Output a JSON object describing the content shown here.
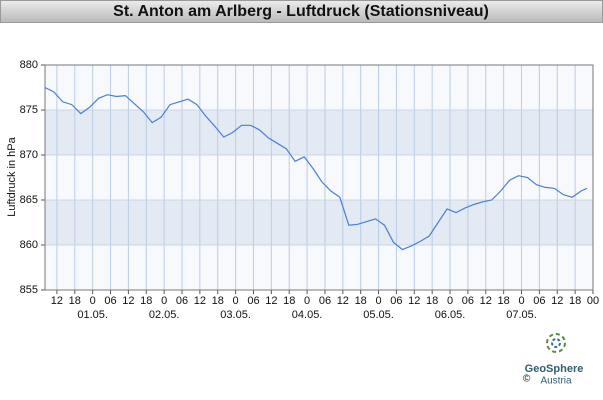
{
  "chart_data": {
    "type": "line",
    "title": "St. Anton am Arlberg - Luftdruck (Stationsniveau)",
    "y_label": "Luftdruck in hPa",
    "x": [
      0,
      3,
      6,
      9,
      12,
      15,
      18,
      21,
      24,
      27,
      30,
      33,
      36,
      39,
      42,
      45,
      48,
      51,
      54,
      57,
      60,
      63,
      66,
      69,
      72,
      75,
      78,
      81,
      84,
      87,
      90,
      93,
      96,
      99,
      102,
      105,
      108,
      111,
      114,
      117,
      120,
      123,
      126,
      129,
      132,
      135,
      138,
      141,
      144,
      147,
      150,
      153,
      156,
      159,
      162,
      165,
      168,
      171,
      174,
      177,
      180,
      182
    ],
    "values": [
      877.5,
      877.0,
      875.9,
      875.6,
      874.6,
      875.3,
      876.3,
      876.7,
      876.5,
      876.6,
      875.7,
      874.8,
      873.6,
      874.2,
      875.6,
      875.9,
      876.2,
      875.6,
      874.3,
      873.2,
      872.0,
      872.5,
      873.3,
      873.3,
      872.8,
      871.9,
      871.3,
      870.7,
      869.3,
      869.8,
      868.5,
      867.0,
      866.0,
      865.3,
      862.2,
      862.3,
      862.6,
      862.9,
      862.2,
      860.3,
      859.5,
      859.9,
      860.4,
      861.0,
      862.5,
      864.0,
      863.6,
      864.1,
      864.5,
      864.8,
      865.0,
      866.0,
      867.2,
      867.7,
      867.5,
      866.7,
      866.4,
      866.3,
      865.6,
      865.3,
      866.0,
      866.3
    ],
    "color": "#4a7fd6",
    "xlim": [
      0,
      184
    ],
    "xticks": [
      {
        "value": 4,
        "label": "12"
      },
      {
        "value": 10,
        "label": "18"
      },
      {
        "value": 16,
        "label": "0"
      },
      {
        "value": 22,
        "label": "06"
      },
      {
        "value": 28,
        "label": "12"
      },
      {
        "value": 34,
        "label": "18"
      },
      {
        "value": 40,
        "label": "0"
      },
      {
        "value": 46,
        "label": "06"
      },
      {
        "value": 52,
        "label": "12"
      },
      {
        "value": 58,
        "label": "18"
      },
      {
        "value": 64,
        "label": "0"
      },
      {
        "value": 70,
        "label": "06"
      },
      {
        "value": 76,
        "label": "12"
      },
      {
        "value": 82,
        "label": "18"
      },
      {
        "value": 88,
        "label": "0"
      },
      {
        "value": 94,
        "label": "06"
      },
      {
        "value": 100,
        "label": "12"
      },
      {
        "value": 106,
        "label": "18"
      },
      {
        "value": 112,
        "label": "0"
      },
      {
        "value": 118,
        "label": "06"
      },
      {
        "value": 124,
        "label": "12"
      },
      {
        "value": 130,
        "label": "18"
      },
      {
        "value": 136,
        "label": "0"
      },
      {
        "value": 142,
        "label": "06"
      },
      {
        "value": 148,
        "label": "12"
      },
      {
        "value": 154,
        "label": "18"
      },
      {
        "value": 160,
        "label": "0"
      },
      {
        "value": 166,
        "label": "06"
      },
      {
        "value": 172,
        "label": "12"
      },
      {
        "value": 178,
        "label": "18"
      },
      {
        "value": 184,
        "label": "00"
      }
    ],
    "date_labels": [
      {
        "value": 16,
        "label": "01.05."
      },
      {
        "value": 40,
        "label": "02.05."
      },
      {
        "value": 64,
        "label": "03.05."
      },
      {
        "value": 88,
        "label": "04.05."
      },
      {
        "value": 112,
        "label": "05.05."
      },
      {
        "value": 136,
        "label": "06.05."
      },
      {
        "value": 160,
        "label": "07.05."
      }
    ],
    "ylim": [
      855,
      880
    ],
    "yticks": [
      855,
      860,
      865,
      870,
      875,
      880
    ],
    "grid": true
  },
  "footer": {
    "copyright": "©",
    "logo_name": "GeoSphere",
    "logo_sub": "Austria"
  }
}
